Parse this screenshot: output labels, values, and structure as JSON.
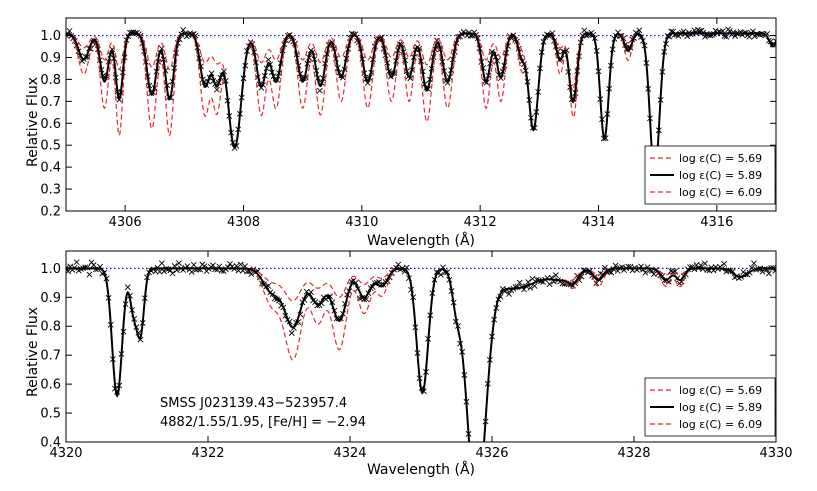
{
  "chart_data": [
    {
      "type": "line",
      "xlabel": "Wavelength (Å)",
      "ylabel": "Relative Flux",
      "xlim": [
        4305.0,
        4317.0
      ],
      "ylim": [
        0.2,
        1.08
      ],
      "xticks": [
        4306,
        4308,
        4310,
        4312,
        4314,
        4316
      ],
      "yticks": [
        0.2,
        0.3,
        0.4,
        0.5,
        0.6,
        0.7,
        0.8,
        0.9,
        1.0
      ],
      "ytick_labels": [
        "0.2",
        "0.3",
        "0.4",
        "0.5",
        "0.6",
        "0.7",
        "0.8",
        "0.9",
        "1.0"
      ],
      "continuum": 1.0,
      "continuum_color": "#0000cc",
      "legend_position": "lower-right",
      "legend": [
        "log ε(C) = 5.69",
        "log ε(C) = 5.89",
        "log ε(C) = 6.09"
      ],
      "series": [
        {
          "name": "log ε(C) = 5.69",
          "color": "#e8262b",
          "style": "dashed",
          "carbon_scale": 0.55
        },
        {
          "name": "log ε(C) = 5.89",
          "color": "#000000",
          "style": "solid",
          "carbon_scale": 1.0
        },
        {
          "name": "log ε(C) = 6.09",
          "color": "#e8262b",
          "style": "dashed",
          "carbon_scale": 1.55
        }
      ],
      "observed": {
        "marker": "x",
        "color": "#000000",
        "x_range": [
          4305.0,
          4317.0
        ],
        "step": 0.03
      },
      "continuum_level": 1.01,
      "carbon_lines": [
        {
          "x": 4305.3,
          "depth": 0.12,
          "width": 0.09
        },
        {
          "x": 4305.65,
          "depth": 0.22,
          "width": 0.07
        },
        {
          "x": 4305.9,
          "depth": 0.3,
          "width": 0.06
        },
        {
          "x": 4306.45,
          "depth": 0.28,
          "width": 0.08
        },
        {
          "x": 4306.75,
          "depth": 0.3,
          "width": 0.07
        },
        {
          "x": 4307.35,
          "depth": 0.24,
          "width": 0.08
        },
        {
          "x": 4307.55,
          "depth": 0.22,
          "width": 0.07
        },
        {
          "x": 4308.3,
          "depth": 0.24,
          "width": 0.08
        },
        {
          "x": 4308.55,
          "depth": 0.22,
          "width": 0.08
        },
        {
          "x": 4309.0,
          "depth": 0.22,
          "width": 0.08
        },
        {
          "x": 4309.3,
          "depth": 0.24,
          "width": 0.08
        },
        {
          "x": 4309.65,
          "depth": 0.2,
          "width": 0.08
        },
        {
          "x": 4310.1,
          "depth": 0.22,
          "width": 0.08
        },
        {
          "x": 4310.5,
          "depth": 0.2,
          "width": 0.08
        },
        {
          "x": 4310.8,
          "depth": 0.2,
          "width": 0.07
        },
        {
          "x": 4311.1,
          "depth": 0.26,
          "width": 0.08
        },
        {
          "x": 4311.45,
          "depth": 0.22,
          "width": 0.08
        },
        {
          "x": 4312.1,
          "depth": 0.22,
          "width": 0.07
        },
        {
          "x": 4312.35,
          "depth": 0.2,
          "width": 0.07
        },
        {
          "x": 4312.7,
          "depth": 0.1,
          "width": 0.06
        },
        {
          "x": 4313.35,
          "depth": 0.12,
          "width": 0.06
        },
        {
          "x": 4313.6,
          "depth": 0.14,
          "width": 0.06
        },
        {
          "x": 4314.5,
          "depth": 0.08,
          "width": 0.06
        }
      ],
      "other_lines": [
        {
          "x": 4307.85,
          "depth": 0.52,
          "width": 0.11
        },
        {
          "x": 4312.9,
          "depth": 0.44,
          "width": 0.08
        },
        {
          "x": 4314.1,
          "depth": 0.48,
          "width": 0.07
        },
        {
          "x": 4314.95,
          "depth": 0.64,
          "width": 0.08
        },
        {
          "x": 4313.55,
          "depth": 0.2,
          "width": 0.06
        },
        {
          "x": 4316.95,
          "depth": 0.06,
          "width": 0.06
        }
      ]
    },
    {
      "type": "line",
      "xlabel": "Wavelength (Å)",
      "ylabel": "Relative Flux",
      "xlim": [
        4320.0,
        4330.0
      ],
      "ylim": [
        0.4,
        1.06
      ],
      "xticks": [
        4320,
        4322,
        4324,
        4326,
        4328,
        4330
      ],
      "yticks": [
        0.4,
        0.5,
        0.6,
        0.7,
        0.8,
        0.9,
        1.0
      ],
      "ytick_labels": [
        "0.4",
        "0.5",
        "0.6",
        "0.7",
        "0.8",
        "0.9",
        "1.0"
      ],
      "continuum": 1.0,
      "continuum_color": "#0000cc",
      "legend_position": "lower-right",
      "legend": [
        "log ε(C) = 5.69",
        "log ε(C) = 5.89",
        "log ε(C) = 6.09"
      ],
      "series": [
        {
          "name": "log ε(C) = 5.69",
          "color": "#e8262b",
          "style": "dashed",
          "carbon_scale": 0.55
        },
        {
          "name": "log ε(C) = 5.89",
          "color": "#000000",
          "style": "solid",
          "carbon_scale": 1.0
        },
        {
          "name": "log ε(C) = 6.09",
          "color": "#e8262b",
          "style": "dashed",
          "carbon_scale": 1.55
        }
      ],
      "observed": {
        "marker": "x",
        "color": "#000000",
        "x_range": [
          4320.0,
          4330.0
        ],
        "step": 0.03
      },
      "continuum_level": 1.0,
      "carbon_lines": [
        {
          "x": 4322.9,
          "depth": 0.08,
          "width": 0.12
        },
        {
          "x": 4323.2,
          "depth": 0.2,
          "width": 0.12
        },
        {
          "x": 4323.55,
          "depth": 0.12,
          "width": 0.1
        },
        {
          "x": 4323.85,
          "depth": 0.18,
          "width": 0.1
        },
        {
          "x": 4324.2,
          "depth": 0.1,
          "width": 0.09
        },
        {
          "x": 4324.45,
          "depth": 0.06,
          "width": 0.08
        },
        {
          "x": 4327.15,
          "depth": 0.03,
          "width": 0.07
        },
        {
          "x": 4327.5,
          "depth": 0.04,
          "width": 0.07
        },
        {
          "x": 4328.45,
          "depth": 0.04,
          "width": 0.07
        },
        {
          "x": 4328.65,
          "depth": 0.04,
          "width": 0.06
        }
      ],
      "other_lines": [
        {
          "x": 4320.72,
          "depth": 0.44,
          "width": 0.07
        },
        {
          "x": 4320.95,
          "depth": 0.14,
          "width": 0.05
        },
        {
          "x": 4321.05,
          "depth": 0.22,
          "width": 0.05
        },
        {
          "x": 4325.02,
          "depth": 0.43,
          "width": 0.08
        },
        {
          "x": 4325.5,
          "depth": 0.1,
          "width": 0.06
        },
        {
          "x": 4325.78,
          "depth": 0.8,
          "width": 0.13
        },
        {
          "x": 4326.3,
          "depth": 0.07,
          "width": 0.35
        },
        {
          "x": 4327.0,
          "depth": 0.03,
          "width": 0.15
        },
        {
          "x": 4329.5,
          "depth": 0.03,
          "width": 0.1
        }
      ],
      "annotation": [
        "SMSS J023139.43−523957.4",
        "4882/1.55/1.95, [Fe/H] = −2.94"
      ]
    }
  ]
}
